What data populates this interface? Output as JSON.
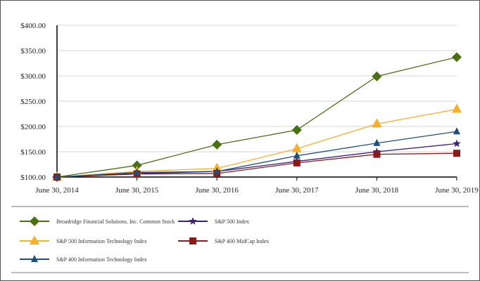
{
  "chart_data": {
    "type": "line",
    "title": "",
    "xlabel": "",
    "ylabel": "",
    "categories": [
      "June 30, 2014",
      "June 30, 2015",
      "June 30, 2016",
      "June 30, 2017",
      "June 30, 2018",
      "June 30, 2019"
    ],
    "ylim": [
      100,
      400
    ],
    "yticks": [
      "$100.00",
      "$150.00",
      "$200.00",
      "$250.00",
      "$300.00",
      "$350.00",
      "$400.00"
    ],
    "ytick_values": [
      100,
      150,
      200,
      250,
      300,
      350,
      400
    ],
    "grid": true,
    "legend_position": "bottom",
    "series": [
      {
        "name": "Broadridge Financial Solutions. Inc. Common Stock",
        "values": [
          100,
          123,
          164,
          193,
          299,
          337
        ],
        "color": "#4a7014",
        "marker": "diamond"
      },
      {
        "name": "S&P 500 Index",
        "values": [
          100,
          107,
          111,
          131,
          150,
          166
        ],
        "color": "#3b1f7a",
        "marker": "star"
      },
      {
        "name": "S&P 500 Information Technology Index",
        "values": [
          100,
          111,
          117,
          156,
          205,
          234
        ],
        "color": "#f7b02a",
        "marker": "triangle"
      },
      {
        "name": "S&P 400 MidCap Index",
        "values": [
          100,
          106,
          107,
          128,
          145,
          147
        ],
        "color": "#8b1a1a",
        "marker": "square"
      },
      {
        "name": "S&P 400 Information Technology Index",
        "values": [
          100,
          109,
          111,
          142,
          167,
          190
        ],
        "color": "#1f4e7a",
        "marker": "triangle-small"
      }
    ]
  }
}
